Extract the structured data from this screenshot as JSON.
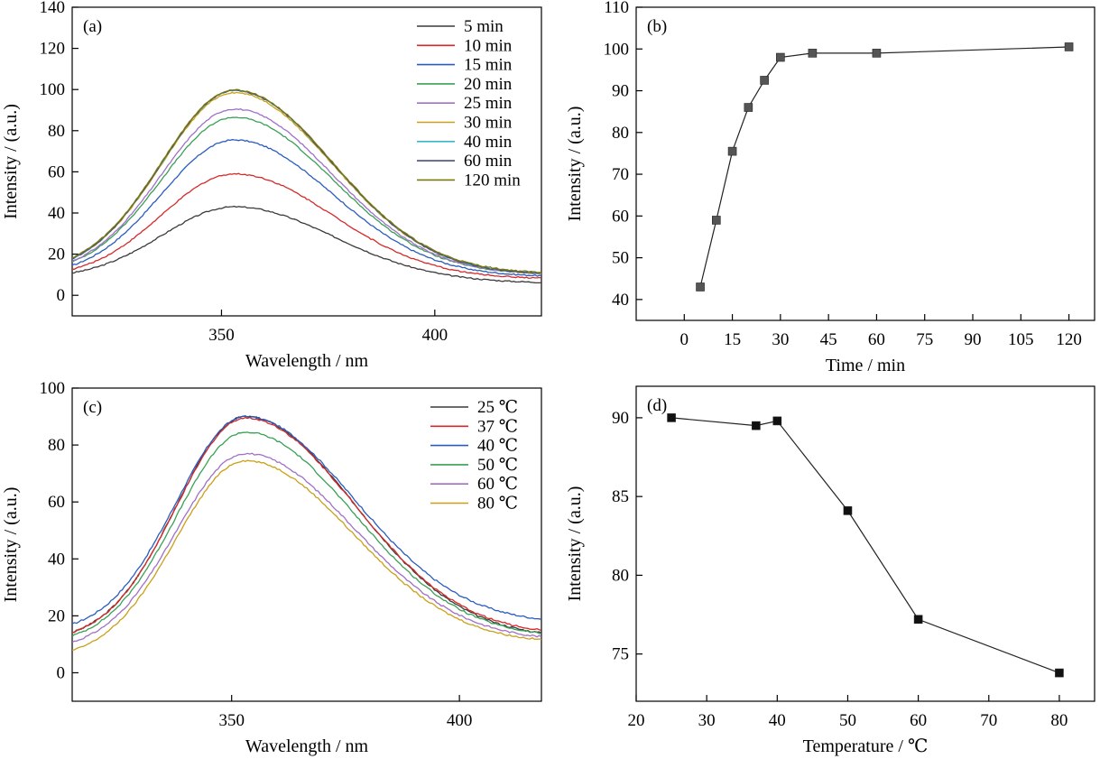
{
  "chart_data": [
    {
      "panel": "(a)",
      "type": "line",
      "xlabel": "Wavelength / nm",
      "ylabel": "Intensity / (a.u.)",
      "xlim": [
        315,
        425
      ],
      "ylim": [
        -10,
        140
      ],
      "xticks": [
        350,
        400
      ],
      "yticks": [
        0,
        20,
        40,
        60,
        80,
        100,
        120,
        140
      ],
      "series": [
        {
          "name": "5 min",
          "color": "#3a3a3a",
          "peak": 43,
          "base_start": 8,
          "base_end": 6
        },
        {
          "name": "10 min",
          "color": "#d62a2a",
          "peak": 59,
          "base_start": 8.5,
          "base_end": 8
        },
        {
          "name": "15 min",
          "color": "#2a5cbf",
          "peak": 75.5,
          "base_start": 9,
          "base_end": 9
        },
        {
          "name": "20 min",
          "color": "#3aa055",
          "peak": 86.5,
          "base_start": 10,
          "base_end": 10
        },
        {
          "name": "25 min",
          "color": "#a070c8",
          "peak": 90.5,
          "base_start": 10,
          "base_end": 10
        },
        {
          "name": "30 min",
          "color": "#c9a017",
          "peak": 98.5,
          "base_start": 10.5,
          "base_end": 10
        },
        {
          "name": "40 min",
          "color": "#3ab6c8",
          "peak": 99.5,
          "base_start": 10.5,
          "base_end": 10
        },
        {
          "name": "60 min",
          "color": "#4a4e7a",
          "peak": 99.5,
          "base_start": 10.5,
          "base_end": 10
        },
        {
          "name": "120 min",
          "color": "#7a7a10",
          "peak": 99.8,
          "base_start": 11,
          "base_end": 10.5
        }
      ]
    },
    {
      "panel": "(b)",
      "type": "line",
      "xlabel": "Time / min",
      "ylabel": "Intensity / (a.u.)",
      "xlim": [
        -15,
        128
      ],
      "ylim": [
        35,
        110
      ],
      "xticks": [
        0,
        15,
        30,
        45,
        60,
        75,
        90,
        105,
        120
      ],
      "yticks": [
        40,
        50,
        60,
        70,
        80,
        90,
        100,
        110
      ],
      "x": [
        5,
        10,
        15,
        20,
        25,
        30,
        40,
        60,
        120
      ],
      "y": [
        43,
        59,
        75.5,
        86,
        92.5,
        98,
        99,
        99,
        100.5
      ],
      "color": "#555555"
    },
    {
      "panel": "(c)",
      "type": "line",
      "xlabel": "Wavelength / nm",
      "ylabel": "Intensity / (a.u.)",
      "xlim": [
        315,
        418
      ],
      "ylim": [
        -10,
        100
      ],
      "xticks": [
        350,
        400
      ],
      "yticks": [
        0,
        20,
        40,
        60,
        80,
        100
      ],
      "series": [
        {
          "name": "25 ℃",
          "color": "#3a3a3a",
          "peak": 90,
          "base_start": 11,
          "base_end": 12
        },
        {
          "name": "37 ℃",
          "color": "#d62a2a",
          "peak": 89.5,
          "base_start": 11,
          "base_end": 13
        },
        {
          "name": "40 ℃",
          "color": "#2a5cbf",
          "peak": 90,
          "base_start": 14,
          "base_end": 17
        },
        {
          "name": "50 ℃",
          "color": "#3aa055",
          "peak": 84.5,
          "base_start": 10,
          "base_end": 12
        },
        {
          "name": "60 ℃",
          "color": "#a070c8",
          "peak": 77,
          "base_start": 8,
          "base_end": 11
        },
        {
          "name": "80 ℃",
          "color": "#c9a017",
          "peak": 74.5,
          "base_start": 5,
          "base_end": 10
        }
      ]
    },
    {
      "panel": "(d)",
      "type": "line",
      "xlabel": "Temperature / ℃",
      "ylabel": "Intensity / (a.u.)",
      "xlim": [
        20,
        85
      ],
      "ylim": [
        72,
        92
      ],
      "xticks": [
        20,
        30,
        40,
        50,
        60,
        70,
        80
      ],
      "yticks": [
        75,
        80,
        85,
        90
      ],
      "x": [
        25,
        37,
        40,
        50,
        60,
        80
      ],
      "y": [
        90,
        89.5,
        89.8,
        84.1,
        77.2,
        73.8
      ],
      "color": "#111111"
    }
  ]
}
